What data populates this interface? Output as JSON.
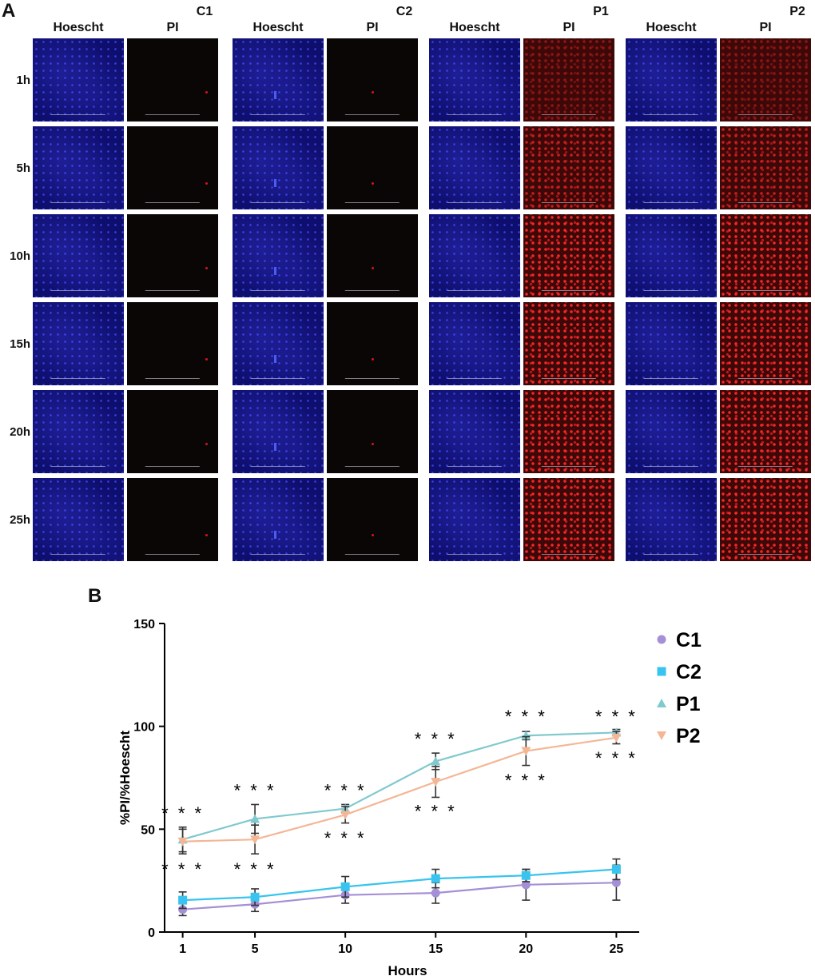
{
  "panel_a": {
    "label": "A",
    "groups": [
      {
        "name": "C1",
        "channels": [
          "Hoescht",
          "PI"
        ],
        "pi_state": "dark"
      },
      {
        "name": "C2",
        "channels": [
          "Hoescht",
          "PI"
        ],
        "pi_state": "dark"
      },
      {
        "name": "P1",
        "channels": [
          "Hoescht",
          "PI"
        ],
        "pi_state": "red"
      },
      {
        "name": "P2",
        "channels": [
          "Hoescht",
          "PI"
        ],
        "pi_state": "red"
      }
    ],
    "rows": [
      "1h",
      "5h",
      "10h",
      "15h",
      "20h",
      "25h"
    ]
  },
  "panel_b": {
    "label": "B"
  },
  "chart_data": {
    "type": "line",
    "xlabel": "Hours",
    "ylabel": "%PI/%Hoescht",
    "x": [
      1,
      5,
      10,
      15,
      20,
      25
    ],
    "xticks": [
      "1",
      "5",
      "10",
      "15",
      "20",
      "25"
    ],
    "ylim": [
      0,
      150
    ],
    "yticks": [
      0,
      50,
      100,
      150
    ],
    "legend_position": "top-right",
    "series": [
      {
        "name": "C1",
        "marker": "circle",
        "color": "#a58fd6",
        "values": [
          11,
          13.5,
          18,
          19,
          23,
          24
        ],
        "errors": [
          3,
          3.5,
          4,
          5,
          7.5,
          8.5
        ]
      },
      {
        "name": "C2",
        "marker": "square",
        "color": "#38c4ee",
        "values": [
          15.5,
          17,
          22,
          26,
          27.5,
          30.5
        ],
        "errors": [
          4,
          4,
          5,
          4.5,
          3,
          5
        ]
      },
      {
        "name": "P1",
        "marker": "triangle-up",
        "color": "#80c9ce",
        "values": [
          45,
          55,
          60,
          83,
          95.5,
          97
        ],
        "errors": [
          6,
          7,
          2,
          4,
          2,
          1.5
        ]
      },
      {
        "name": "P2",
        "marker": "triangle-down",
        "color": "#f4b695",
        "values": [
          44,
          45,
          57,
          73,
          88,
          94.5
        ],
        "errors": [
          6,
          7,
          4,
          7.5,
          7,
          3
        ]
      }
    ],
    "annotations": [
      {
        "text": "***",
        "x": 1,
        "y": 51,
        "place": "above"
      },
      {
        "text": "***",
        "x": 1,
        "y": 37,
        "place": "below"
      },
      {
        "text": "***",
        "x": 5,
        "y": 62,
        "place": "above"
      },
      {
        "text": "***",
        "x": 5,
        "y": 37,
        "place": "below"
      },
      {
        "text": "***",
        "x": 10,
        "y": 62,
        "place": "above"
      },
      {
        "text": "***",
        "x": 10,
        "y": 52,
        "place": "below"
      },
      {
        "text": "***",
        "x": 15,
        "y": 87,
        "place": "above"
      },
      {
        "text": "***",
        "x": 15,
        "y": 65,
        "place": "below"
      },
      {
        "text": "***",
        "x": 20,
        "y": 98,
        "place": "above"
      },
      {
        "text": "***",
        "x": 20,
        "y": 80,
        "place": "below"
      },
      {
        "text": "***",
        "x": 25,
        "y": 98,
        "place": "above"
      },
      {
        "text": "***",
        "x": 25,
        "y": 91,
        "place": "below"
      }
    ]
  }
}
